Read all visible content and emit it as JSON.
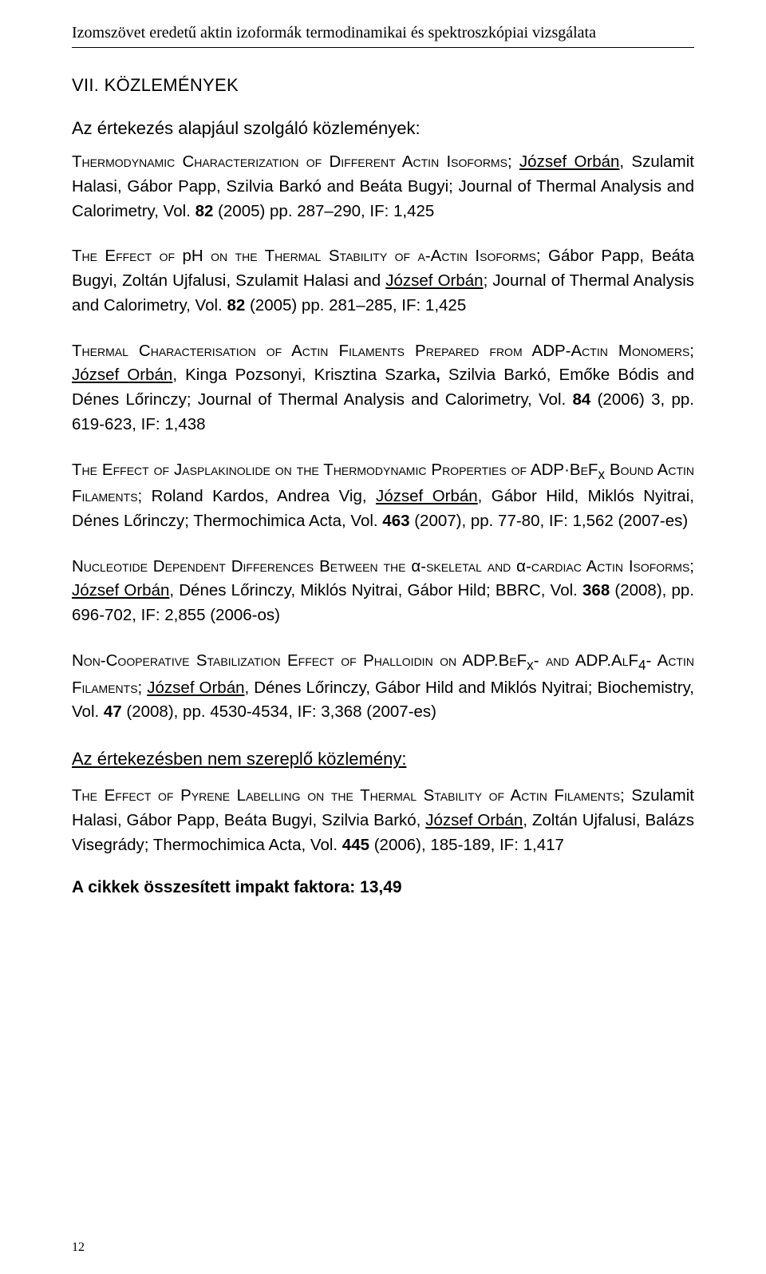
{
  "running_head": "Izomszövet eredetű aktin izoformák termodinamikai és spektroszkópiai vizsgálata",
  "section_title": "VII. KÖZLEMÉNYEK",
  "subheading": "Az értekezés alapjául szolgáló közlemények:",
  "pubs": [
    {
      "title_sc": "Thermodynamic Characterization of Different Actin Isoforms",
      "rest1": "; ",
      "author_u": "József Orbán",
      "rest2": ", Szulamit Halasi, Gábor Papp, Szilvia Barkó and Beáta Bugyi;    Journal of Thermal Analysis and Calorimetry, Vol. ",
      "vol_b": "82",
      "rest3": " (2005) pp. 287–290, IF: 1,425"
    },
    {
      "pre_sc": "The Effect of ",
      "mid": "pH",
      "post_sc": " on the Thermal Stability of ",
      "alpha_sc": "α-Actin Isoforms",
      "rest1": "; Gábor Papp, Beáta Bugyi, Zoltán Ujfalusi, Szulamit Halasi and ",
      "author_u": "József Orbán",
      "rest2": ";    Journal of Thermal Analysis and Calorimetry, Vol. ",
      "vol_b": "82",
      "rest3": " (2005) pp. 281–285, IF: 1,425"
    },
    {
      "title_sc": "Thermal Characterisation of Actin Filaments Prepared from ADP-Actin Monomers",
      "rest1": "; ",
      "author_u": "József Orbán",
      "rest2": ", Kinga Pozsonyi, Krisztina Szarka",
      "bold_comma": ",",
      "rest2b": " Szilvia Barkó, Emőke Bódis and Dénes Lőrinczy;        Journal of Thermal Analysis and Calorimetry, Vol. ",
      "vol_b": "84",
      "rest3": " (2006) 3, pp. 619-623, IF: 1,438"
    },
    {
      "title_sc": "The Effect of Jasplakinolide on the Thermodynamic Properties of ADP·BeF",
      "sub": "x",
      "title_sc2": " Bound Actin Filaments",
      "rest1": "; Roland Kardos, Andrea Vig, ",
      "author_u": "József Orbán",
      "rest2": ", Gábor Hild, Miklós Nyitrai, Dénes Lőrinczy;    Thermochimica Acta, Vol. ",
      "vol_b": "463",
      "rest3": " (2007), pp. 77-80, IF: 1,562 (2007-es)"
    },
    {
      "title_sc": "Nucleotide Dependent Differences Between the ",
      "alpha1": "α",
      "mid_sc": "-skeletal and ",
      "alpha2": "α",
      "title_sc2": "-cardiac Actin Isoforms",
      "rest1": "; ",
      "author_u": "József Orbán",
      "rest2": ", Dénes Lőrinczy, Miklós Nyitrai, Gábor Hild;  BBRC, Vol. ",
      "vol_b": "368",
      "rest3": " (2008), pp. 696-702, IF: 2,855 (2006-os)"
    },
    {
      "title_sc": "Non-Cooperative Stabilization Effect of Phalloidin on ADP.BeF",
      "sub1": "x",
      "mid_sc": "- and ADP.AlF",
      "sub2": "4",
      "title_sc2": "- Actin Filaments",
      "rest1": ";  ",
      "author_u": "József Orbán",
      "rest2": ", Dénes Lőrinczy, Gábor Hild and Miklós Nyitrai; Biochemistry, Vol. ",
      "vol_b": "47",
      "rest3": " (2008), pp. 4530-4534, IF: 3,368 (2007-es)"
    }
  ],
  "subheading2": "Az értekezésben nem szereplő közlemény:",
  "pub7": {
    "title_sc": "The Effect of Pyrene Labelling on the Thermal Stability of Actin Filaments",
    "rest1": "; Szulamit Halasi, Gábor Papp, Beáta Bugyi, Szilvia Barkó, ",
    "author_u": "József Orbán",
    "rest2": ", Zoltán Ujfalusi, Balázs Visegrády; Thermochimica Acta, Vol. ",
    "vol_b": "445",
    "rest3": " (2006), 185-189, IF: 1,417"
  },
  "impact_line": "A cikkek összesített impakt faktora: 13,49",
  "page_number": "12"
}
